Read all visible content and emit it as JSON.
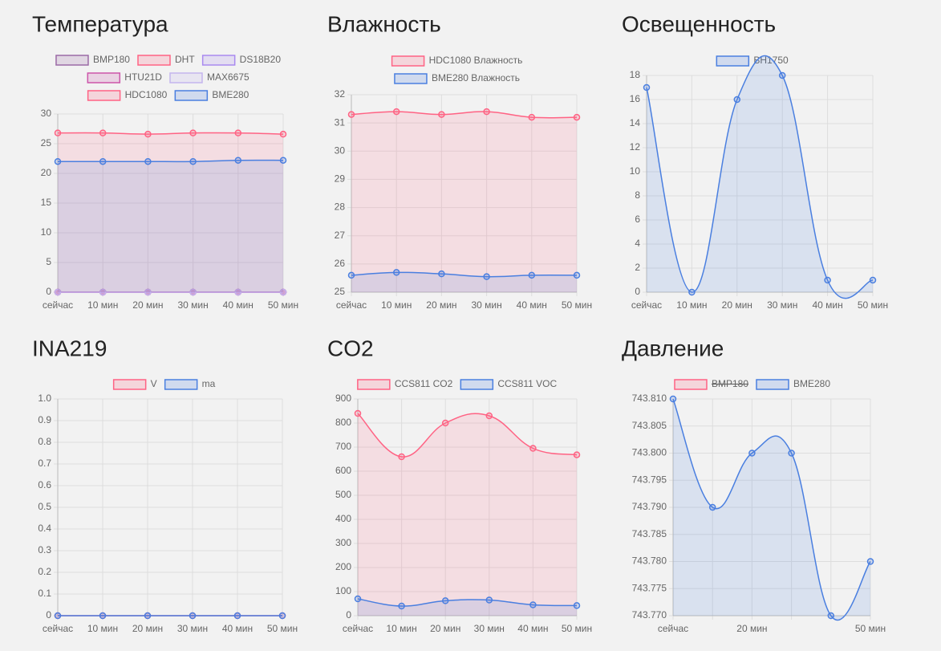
{
  "chart_data": [
    {
      "type": "line",
      "title": "Температура",
      "fill": true,
      "categories": [
        "сейчас",
        "10 мин",
        "20 мин",
        "30 мин",
        "40 мин",
        "50 мин"
      ],
      "ylim": [
        0,
        30
      ],
      "yticks": [
        0,
        5,
        10,
        15,
        20,
        25,
        30
      ],
      "grid": true,
      "series": [
        {
          "name": "BMP180",
          "color": "#9b6aa6",
          "values": [
            0,
            0,
            0,
            0,
            0,
            0
          ]
        },
        {
          "name": "DHT",
          "color": "#ff6384",
          "values": [
            0,
            0,
            0,
            0,
            0,
            0
          ]
        },
        {
          "name": "DS18B20",
          "color": "#a98af0",
          "values": [
            0,
            0,
            0,
            0,
            0,
            0
          ]
        },
        {
          "name": "HTU21D",
          "color": "#cc55aa",
          "values": [
            0,
            0,
            0,
            0,
            0,
            0
          ]
        },
        {
          "name": "MAX6675",
          "color": "#c4b5ee",
          "values": [
            0,
            0,
            0,
            0,
            0,
            0
          ]
        },
        {
          "name": "HDC1080",
          "color": "#ff6384",
          "values": [
            26.8,
            26.8,
            26.6,
            26.8,
            26.8,
            26.6
          ]
        },
        {
          "name": "BME280",
          "color": "#4a7fe0",
          "values": [
            22,
            22,
            22,
            22,
            22.2,
            22.2
          ]
        }
      ]
    },
    {
      "type": "line",
      "title": "Влажность",
      "fill": true,
      "categories": [
        "сейчас",
        "10 мин",
        "20 мин",
        "30 мин",
        "40 мин",
        "50 мин"
      ],
      "ylim": [
        25,
        32
      ],
      "yticks": [
        25,
        26,
        27,
        28,
        29,
        30,
        31,
        32
      ],
      "grid": true,
      "series": [
        {
          "name": "HDC1080 Влажность",
          "color": "#ff6384",
          "values": [
            31.3,
            31.4,
            31.3,
            31.4,
            31.2,
            31.2
          ]
        },
        {
          "name": "BME280 Влажность",
          "color": "#4a7fe0",
          "values": [
            25.6,
            25.7,
            25.65,
            25.55,
            25.6,
            25.6
          ]
        }
      ]
    },
    {
      "type": "line",
      "title": "Освещенность",
      "fill": true,
      "categories": [
        "сейчас",
        "10 мин",
        "20 мин",
        "30 мин",
        "40 мин",
        "50 мин"
      ],
      "ylim": [
        0,
        18
      ],
      "yticks": [
        0,
        2,
        4,
        6,
        8,
        10,
        12,
        14,
        16,
        18
      ],
      "grid": true,
      "series": [
        {
          "name": "BH1750",
          "color": "#4a7fe0",
          "values": [
            17,
            0,
            16,
            18,
            1,
            1
          ]
        }
      ]
    },
    {
      "type": "line",
      "title": "INA219",
      "fill": true,
      "categories": [
        "сейчас",
        "10 мин",
        "20 мин",
        "30 мин",
        "40 мин",
        "50 мин"
      ],
      "ylim": [
        0,
        1
      ],
      "yticks": [
        0,
        0.1,
        0.2,
        0.3,
        0.4,
        0.5,
        0.6,
        0.7,
        0.8,
        0.9,
        {
          "value": 1,
          "label": "1.0"
        }
      ],
      "grid": true,
      "series": [
        {
          "name": "V",
          "color": "#ff6384",
          "values": [
            0,
            0,
            0,
            0,
            0,
            0
          ]
        },
        {
          "name": "ma",
          "color": "#4a7fe0",
          "values": [
            0,
            0,
            0,
            0,
            0,
            0
          ]
        }
      ]
    },
    {
      "type": "line",
      "title": "CO2",
      "fill": true,
      "categories": [
        "сейчас",
        "10 мин",
        "20 мин",
        "30 мин",
        "40 мин",
        "50 мин"
      ],
      "ylim": [
        0,
        900
      ],
      "yticks": [
        0,
        100,
        200,
        300,
        400,
        500,
        600,
        700,
        800,
        900
      ],
      "grid": true,
      "series": [
        {
          "name": "CCS811 CO2",
          "color": "#ff6384",
          "values": [
            840,
            660,
            800,
            830,
            695,
            668
          ]
        },
        {
          "name": "CCS811 VOC",
          "color": "#4a7fe0",
          "values": [
            70,
            40,
            62,
            65,
            45,
            42
          ]
        }
      ]
    },
    {
      "type": "line",
      "title": "Давление",
      "fill": true,
      "categories": [
        "сейчас",
        null,
        "20 мин",
        null,
        null,
        "50 мин"
      ],
      "ylim": [
        743.77,
        743.81
      ],
      "yticks": [
        {
          "value": 743.77,
          "label": "743.770"
        },
        743.775,
        {
          "value": 743.78,
          "label": "743.780"
        },
        743.785,
        {
          "value": 743.79,
          "label": "743.790"
        },
        743.795,
        {
          "value": 743.8,
          "label": "743.800"
        },
        743.805,
        {
          "value": 743.81,
          "label": "743.810"
        }
      ],
      "grid": true,
      "series": [
        {
          "name": "BMP180",
          "color": "#ff6384",
          "hidden": true
        },
        {
          "name": "BME280",
          "color": "#4a7fe0",
          "values": [
            743.81,
            743.79,
            743.8,
            743.8,
            743.77,
            743.78
          ]
        }
      ]
    }
  ]
}
